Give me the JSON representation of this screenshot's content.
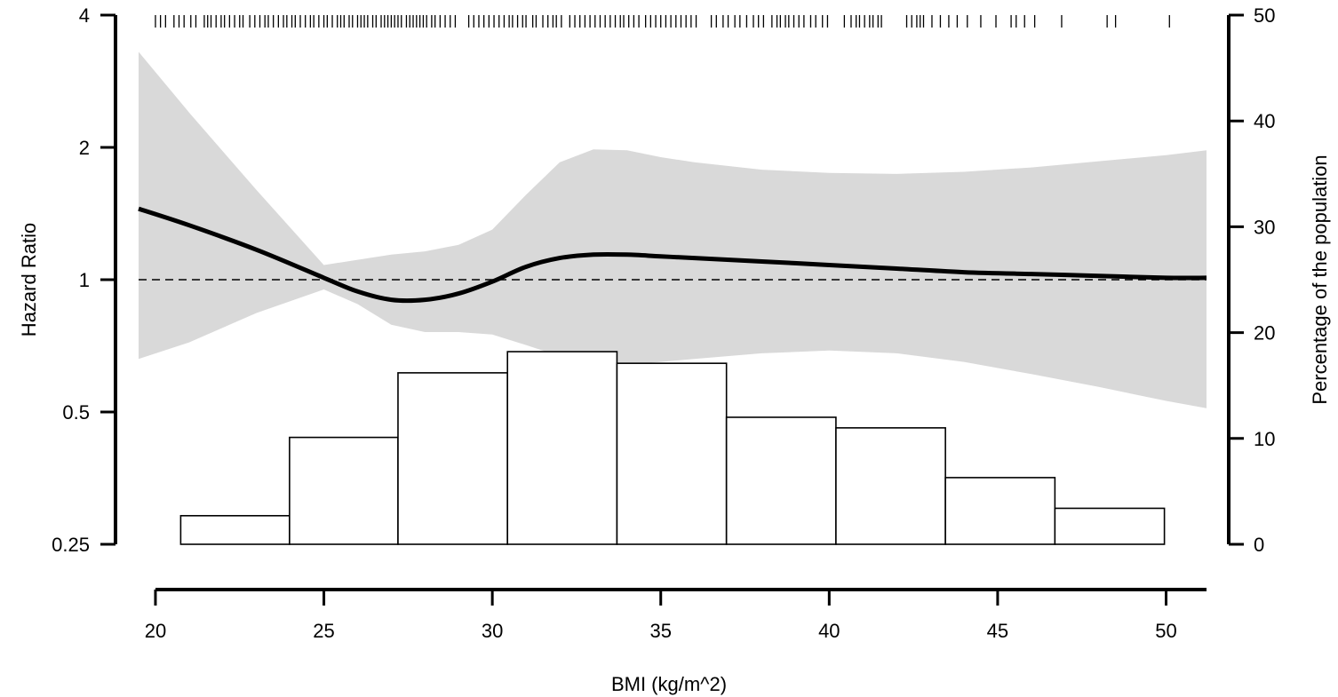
{
  "chart_data": {
    "type": "line",
    "title": "",
    "xlabel": "BMI (kg/m^2)",
    "ylabel": "Hazard Ratio",
    "y2label": "Percentage of the population",
    "xlim": [
      19.5,
      51.2
    ],
    "ylim": [
      0.25,
      4
    ],
    "y_scale": "log2",
    "y2lim": [
      0,
      50
    ],
    "x_ticks": [
      20,
      25,
      30,
      35,
      40,
      45,
      50
    ],
    "y_ticks": [
      {
        "value": 0.25,
        "label": "0.25"
      },
      {
        "value": 0.5,
        "label": "0.5"
      },
      {
        "value": 1,
        "label": "1"
      },
      {
        "value": 2,
        "label": "2"
      },
      {
        "value": 4,
        "label": "4"
      }
    ],
    "y2_ticks": [
      0,
      10,
      20,
      30,
      40,
      50
    ],
    "reference_line": 1,
    "hazard_ratio": {
      "x": [
        19.5,
        21,
        23,
        25,
        26,
        27,
        28,
        29,
        30,
        31,
        32,
        33,
        34,
        35,
        36,
        38,
        40,
        42,
        44,
        46,
        48,
        50,
        51.2
      ],
      "y": [
        1.45,
        1.33,
        1.17,
        1.01,
        0.94,
        0.9,
        0.9,
        0.93,
        0.99,
        1.07,
        1.12,
        1.14,
        1.14,
        1.13,
        1.12,
        1.1,
        1.08,
        1.06,
        1.04,
        1.03,
        1.02,
        1.01,
        1.01
      ]
    },
    "confidence_band": {
      "x": [
        19.5,
        21,
        23,
        25,
        26,
        27,
        28,
        29,
        30,
        31,
        32,
        33,
        34,
        35,
        36,
        38,
        40,
        42,
        44,
        46,
        48,
        50,
        51.2
      ],
      "lower": [
        0.66,
        0.72,
        0.84,
        0.95,
        0.88,
        0.79,
        0.76,
        0.76,
        0.75,
        0.71,
        0.67,
        0.65,
        0.64,
        0.65,
        0.66,
        0.68,
        0.69,
        0.68,
        0.65,
        0.61,
        0.57,
        0.53,
        0.51
      ],
      "upper": [
        3.3,
        2.4,
        1.6,
        1.08,
        1.11,
        1.14,
        1.16,
        1.2,
        1.3,
        1.56,
        1.85,
        1.98,
        1.97,
        1.9,
        1.85,
        1.78,
        1.75,
        1.74,
        1.76,
        1.8,
        1.86,
        1.92,
        1.97
      ]
    },
    "histogram": {
      "bins": [
        {
          "start": 20.75,
          "end": 23.98,
          "value": 2.7
        },
        {
          "start": 23.98,
          "end": 27.2,
          "value": 10.1
        },
        {
          "start": 27.2,
          "end": 30.45,
          "value": 16.2
        },
        {
          "start": 30.45,
          "end": 33.7,
          "value": 18.2
        },
        {
          "start": 33.7,
          "end": 36.95,
          "value": 17.1
        },
        {
          "start": 36.95,
          "end": 40.2,
          "value": 12.0
        },
        {
          "start": 40.2,
          "end": 43.45,
          "value": 11.0
        },
        {
          "start": 43.45,
          "end": 46.7,
          "value": 6.3
        },
        {
          "start": 46.7,
          "end": 49.95,
          "value": 3.4
        }
      ]
    },
    "rug": [
      20.0,
      20.15,
      20.3,
      20.55,
      20.7,
      20.85,
      21.05,
      21.2,
      21.45,
      21.55,
      21.65,
      21.8,
      21.95,
      22.05,
      22.2,
      22.35,
      22.5,
      22.6,
      22.8,
      22.95,
      23.1,
      23.25,
      23.35,
      23.5,
      23.65,
      23.8,
      23.9,
      24.05,
      24.15,
      24.3,
      24.45,
      24.6,
      24.7,
      24.85,
      25.0,
      25.1,
      25.25,
      25.4,
      25.5,
      25.6,
      25.75,
      25.85,
      26.0,
      26.1,
      26.2,
      26.3,
      26.45,
      26.55,
      26.7,
      26.8,
      26.9,
      27.0,
      27.1,
      27.2,
      27.3,
      27.45,
      27.55,
      27.65,
      27.75,
      27.85,
      27.95,
      28.05,
      28.2,
      28.3,
      28.45,
      28.6,
      28.75,
      28.9,
      29.3,
      29.45,
      29.6,
      29.75,
      29.9,
      30.05,
      30.2,
      30.35,
      30.5,
      30.6,
      30.75,
      30.9,
      31.0,
      31.2,
      31.3,
      31.5,
      31.65,
      31.8,
      31.9,
      32.05,
      32.3,
      32.45,
      32.6,
      32.75,
      32.9,
      33.05,
      33.2,
      33.35,
      33.5,
      33.65,
      33.8,
      33.9,
      34.05,
      34.2,
      34.35,
      34.55,
      34.7,
      34.85,
      35.0,
      35.15,
      35.3,
      35.45,
      35.6,
      35.75,
      35.9,
      36.05,
      36.5,
      36.65,
      36.85,
      37.0,
      37.2,
      37.35,
      37.55,
      37.75,
      37.9,
      38.05,
      38.3,
      38.45,
      38.55,
      38.7,
      38.8,
      38.95,
      39.1,
      39.25,
      39.45,
      39.6,
      39.8,
      39.95,
      40.45,
      40.65,
      40.8,
      40.9,
      41.05,
      41.2,
      41.3,
      41.45,
      41.55,
      42.3,
      42.45,
      42.6,
      42.7,
      42.8,
      43.05,
      43.3,
      43.55,
      43.8,
      44.1,
      44.5,
      44.95,
      45.4,
      45.55,
      45.8,
      46.1,
      46.9,
      48.25,
      48.5,
      50.1
    ]
  }
}
